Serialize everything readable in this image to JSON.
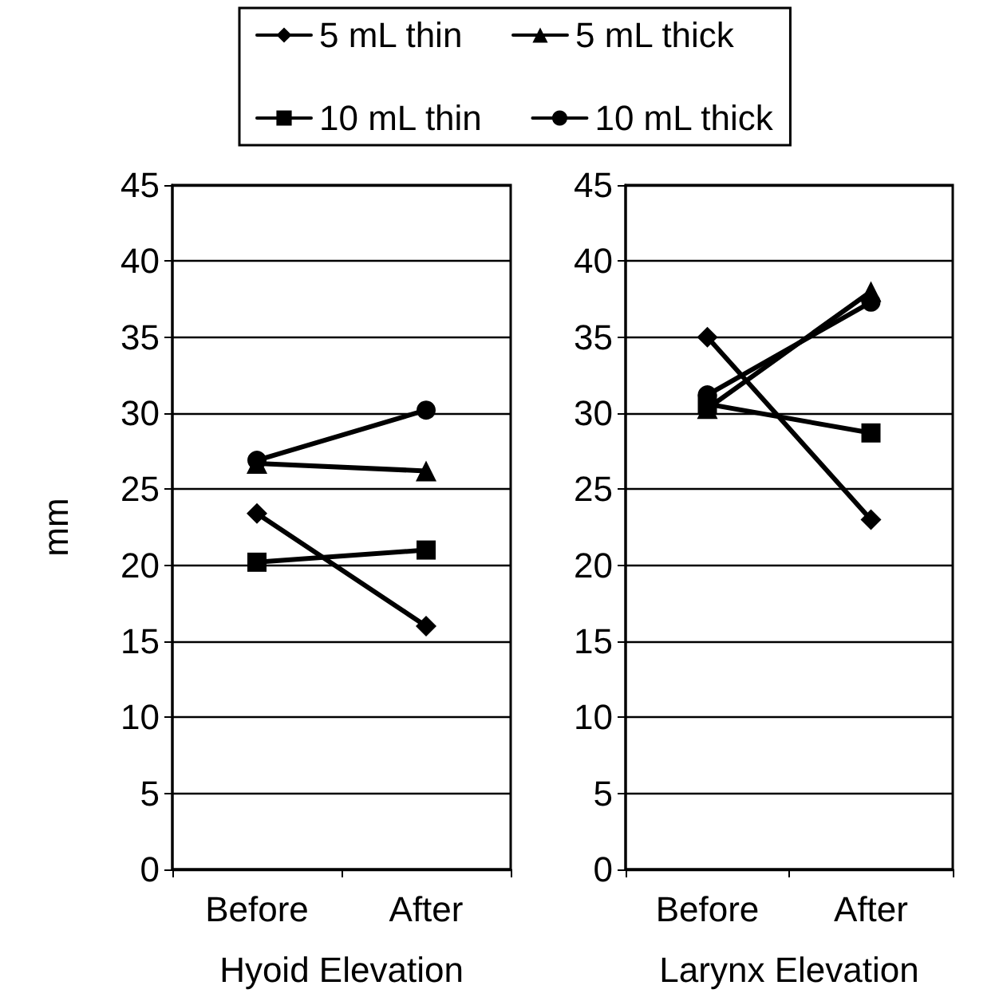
{
  "chart_data": [
    {
      "type": "line",
      "xlabel": "Hyoid Elevation",
      "ylabel": "mm",
      "categories": [
        "Before",
        "After"
      ],
      "ylim": [
        0,
        45
      ],
      "yticks": [
        0,
        5,
        10,
        15,
        20,
        25,
        30,
        35,
        40,
        45
      ],
      "grid": "y",
      "legend": "top",
      "series": [
        {
          "name": "5 mL thin",
          "color": "#000000",
          "marker": "diamond",
          "values": [
            23.4,
            16
          ]
        },
        {
          "name": "5 mL thick",
          "color": "#000000",
          "marker": "triangle",
          "values": [
            26.7,
            26.2
          ]
        },
        {
          "name": "10 mL thin",
          "color": "#000000",
          "marker": "square",
          "values": [
            20.2,
            21
          ]
        },
        {
          "name": "10 mL thick",
          "color": "#000000",
          "marker": "circle",
          "values": [
            26.9,
            30.2
          ]
        }
      ]
    },
    {
      "type": "line",
      "xlabel": "Larynx Elevation",
      "categories": [
        "Before",
        "After"
      ],
      "ylim": [
        0,
        45
      ],
      "yticks": [
        0,
        5,
        10,
        15,
        20,
        25,
        30,
        35,
        40,
        45
      ],
      "grid": "y",
      "series": [
        {
          "color": "#000000",
          "marker": "diamond",
          "values": [
            35,
            23
          ]
        },
        {
          "color": "#000000",
          "marker": "triangle",
          "values": [
            30.3,
            38
          ]
        },
        {
          "color": "#000000",
          "marker": "square",
          "values": [
            30.6,
            28.7
          ]
        },
        {
          "color": "#000000",
          "marker": "circle",
          "values": [
            31.2,
            37.3
          ]
        }
      ]
    }
  ]
}
